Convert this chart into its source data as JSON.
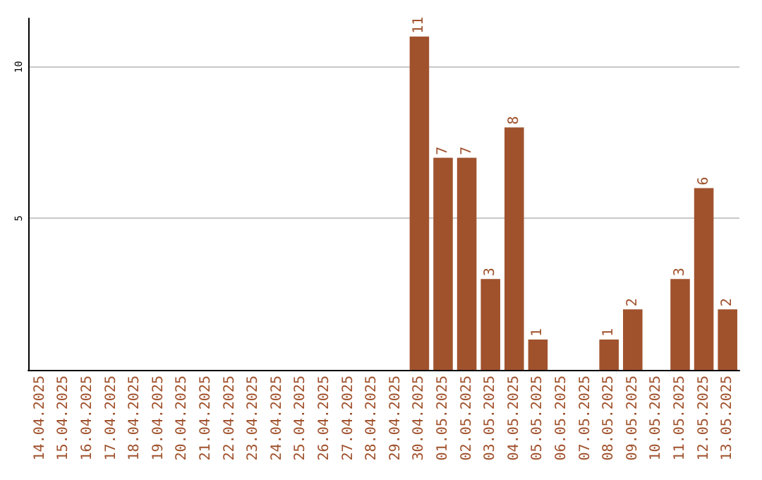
{
  "chart_data": {
    "type": "bar",
    "categories": [
      "14.04.2025",
      "15.04.2025",
      "16.04.2025",
      "17.04.2025",
      "18.04.2025",
      "19.04.2025",
      "20.04.2025",
      "21.04.2025",
      "22.04.2025",
      "23.04.2025",
      "24.04.2025",
      "25.04.2025",
      "26.04.2025",
      "27.04.2025",
      "28.04.2025",
      "29.04.2025",
      "30.04.2025",
      "01.05.2025",
      "02.05.2025",
      "03.05.2025",
      "04.05.2025",
      "05.05.2025",
      "06.05.2025",
      "07.05.2025",
      "08.05.2025",
      "09.05.2025",
      "10.05.2025",
      "11.05.2025",
      "12.05.2025",
      "13.05.2025"
    ],
    "values": [
      0,
      0,
      0,
      0,
      0,
      0,
      0,
      0,
      0,
      0,
      0,
      0,
      0,
      0,
      0,
      0,
      11,
      7,
      7,
      3,
      8,
      1,
      0,
      0,
      1,
      2,
      0,
      3,
      6,
      2
    ],
    "value_labels": [
      null,
      null,
      null,
      null,
      null,
      null,
      null,
      null,
      null,
      null,
      null,
      null,
      null,
      null,
      null,
      null,
      "11",
      "7",
      "7",
      "3",
      "8",
      "1",
      null,
      null,
      "1",
      "2",
      null,
      "3",
      "6",
      "2"
    ],
    "color": "#a0522d",
    "ylim": [
      0,
      11.6
    ],
    "yticks": [
      5,
      10
    ],
    "grid": "y"
  }
}
